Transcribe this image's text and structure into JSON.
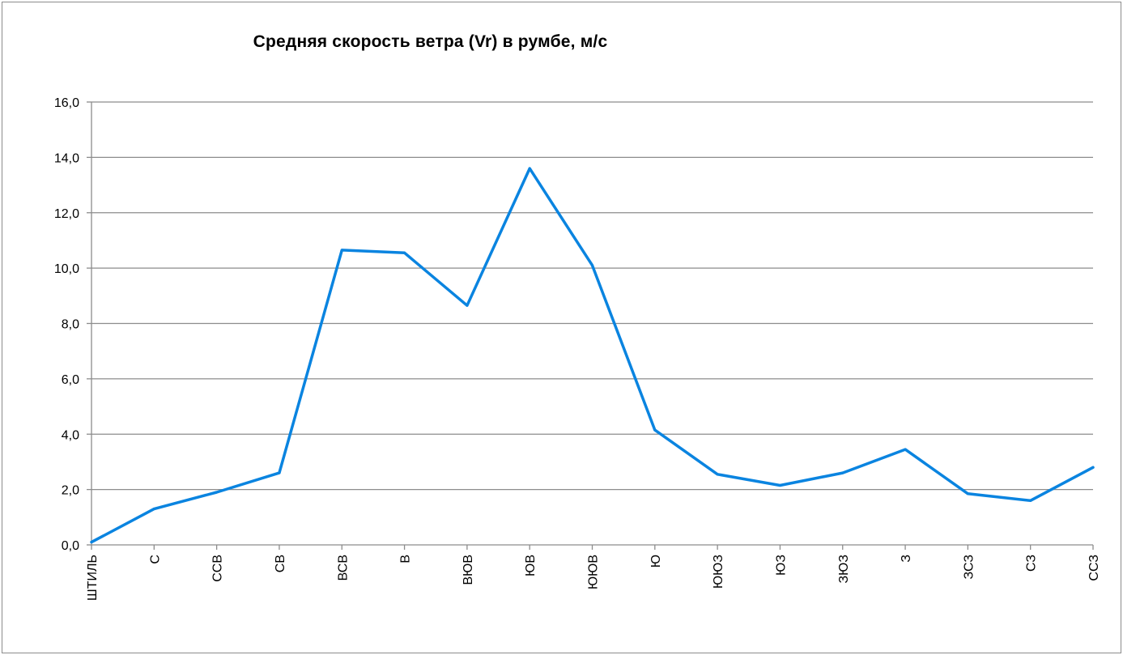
{
  "chart_data": {
    "type": "line",
    "title": "Средняя скорость ветра (Vr) в румбе, м/с",
    "xlabel": "",
    "ylabel": "",
    "categories": [
      "ШТИЛЬ",
      "С",
      "ССВ",
      "СВ",
      "ВСВ",
      "В",
      "ВЮВ",
      "ЮВ",
      "ЮЮВ",
      "Ю",
      "ЮЮЗ",
      "ЮЗ",
      "ЗЮЗ",
      "З",
      "ЗСЗ",
      "СЗ",
      "ССЗ"
    ],
    "series": [
      {
        "values": [
          0.1,
          1.3,
          1.9,
          2.6,
          10.65,
          10.55,
          8.65,
          13.6,
          10.1,
          4.15,
          2.55,
          2.15,
          2.6,
          3.45,
          1.85,
          1.6,
          2.8
        ],
        "color": "#0a84e0"
      }
    ],
    "ylim": [
      0,
      16
    ],
    "yticks": [
      "0,0",
      "2,0",
      "4,0",
      "6,0",
      "8,0",
      "10,0",
      "12,0",
      "14,0",
      "16,0"
    ],
    "grid": true,
    "legend": "none",
    "gridline_color": "#8c8c8c",
    "axis_color": "#8c8c8c"
  }
}
